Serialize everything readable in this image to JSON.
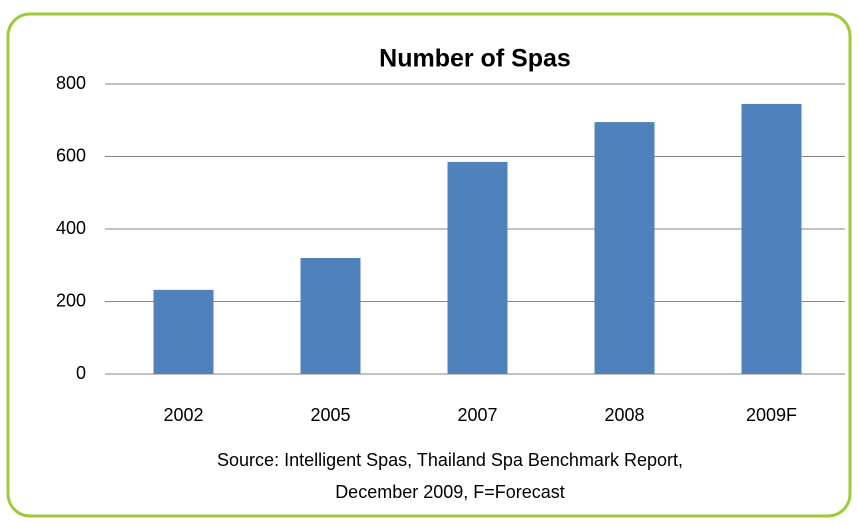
{
  "chart_data": {
    "type": "bar",
    "title": "Number of Spas",
    "categories": [
      "2002",
      "2005",
      "2007",
      "2008",
      "2009F"
    ],
    "values": [
      232,
      320,
      585,
      695,
      745
    ],
    "color": "#4f81bd",
    "ylim": [
      0,
      800
    ],
    "yticks": [
      0,
      200,
      400,
      600,
      800
    ],
    "grid": true,
    "source": [
      "Source: Intelligent Spas, Thailand Spa Benchmark Report,",
      "December 2009, F=Forecast"
    ]
  }
}
